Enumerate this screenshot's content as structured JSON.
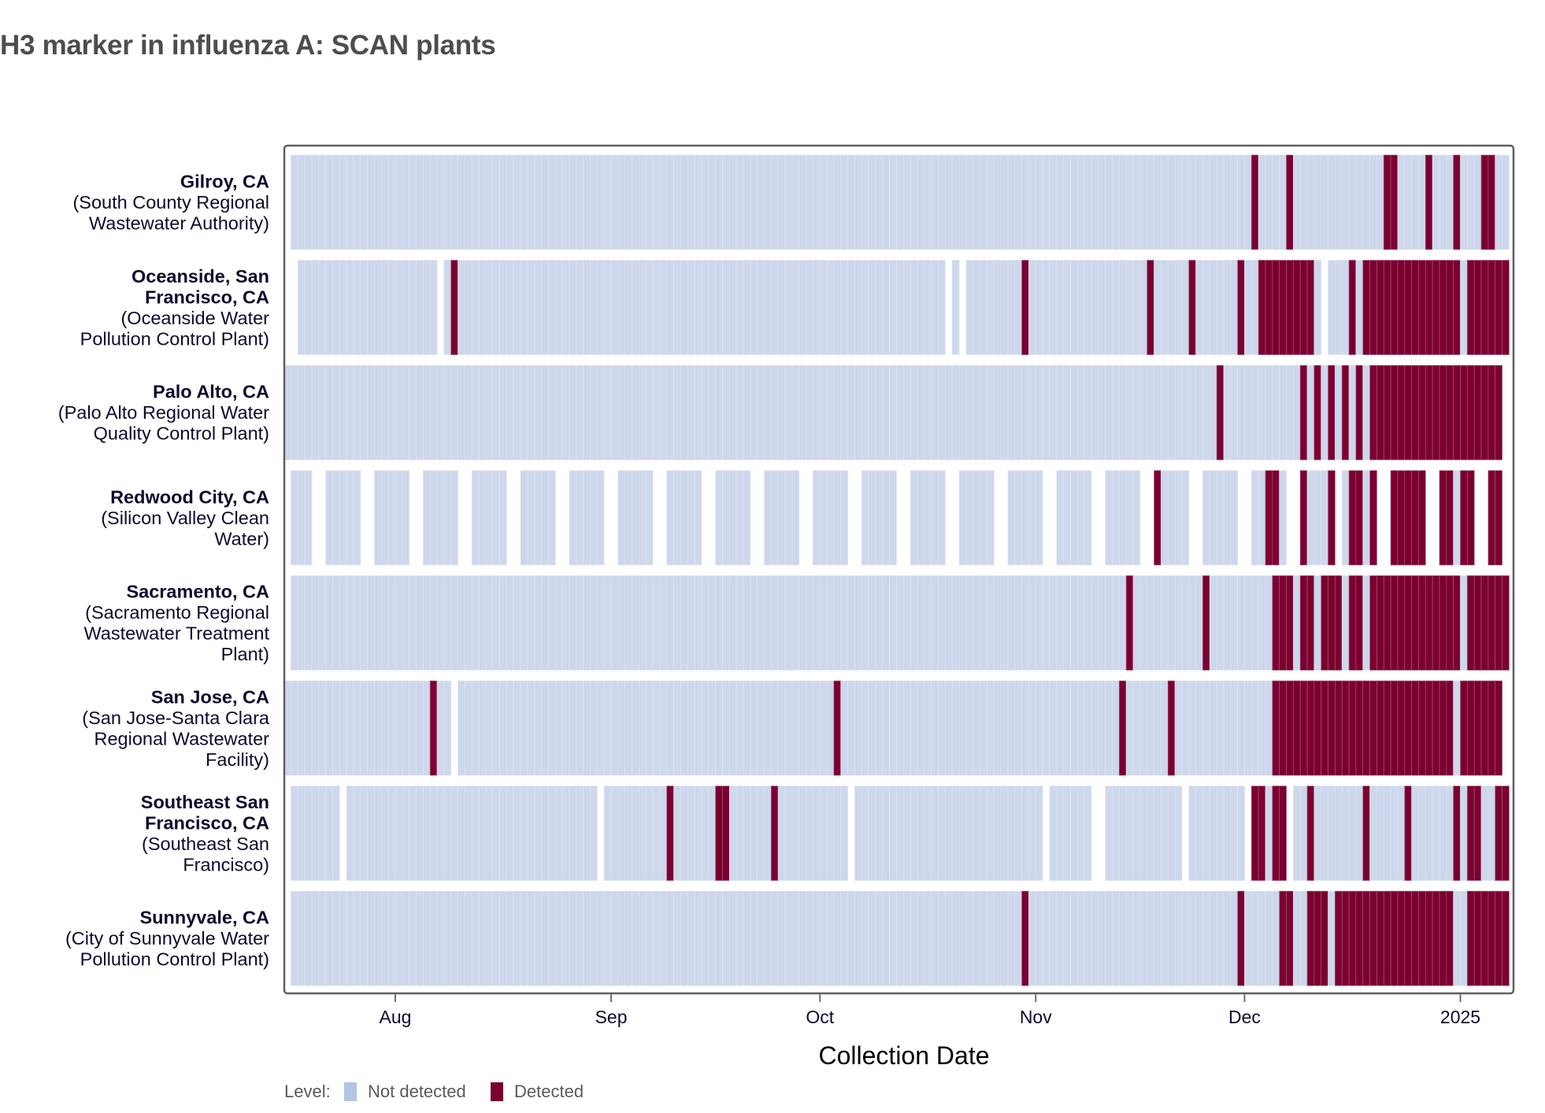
{
  "chart_data": {
    "type": "heatmap",
    "title": "H3 marker in influenza A: SCAN plants",
    "xlabel": "Collection Date",
    "ylabel": "",
    "x_range": [
      "2024-07-16",
      "2025-01-07"
    ],
    "x_ticks": [
      {
        "date": "2024-08-01",
        "label": "Aug"
      },
      {
        "date": "2024-09-01",
        "label": "Sep"
      },
      {
        "date": "2024-10-01",
        "label": "Oct"
      },
      {
        "date": "2024-11-01",
        "label": "Nov"
      },
      {
        "date": "2024-12-01",
        "label": "Dec"
      },
      {
        "date": "2025-01-01",
        "label": "2025"
      }
    ],
    "legend": {
      "title": "Level:",
      "position": "bottom-left",
      "entries": [
        {
          "label": "Not detected",
          "color": "#b4c4e4",
          "cell_color": "#ced7ec"
        },
        {
          "label": "Detected",
          "color": "#7b0030",
          "cell_color": "#7b0030"
        }
      ]
    },
    "series": [
      {
        "city": "Gilroy, CA",
        "plant": "(South County Regional Wastewater Authority)",
        "label_lines": [
          "Gilroy, CA",
          "(South County Regional",
          "Wastewater Authority)"
        ],
        "city_lines": 1,
        "sampled": [
          [
            "2024-07-17",
            "2025-01-07"
          ]
        ],
        "detected": [
          [
            "2024-12-02",
            "2024-12-02"
          ],
          [
            "2024-12-07",
            "2024-12-07"
          ],
          [
            "2024-12-21",
            "2024-12-22"
          ],
          [
            "2024-12-27",
            "2024-12-27"
          ],
          [
            "2024-12-31",
            "2024-12-31"
          ],
          [
            "2025-01-04",
            "2025-01-05"
          ]
        ]
      },
      {
        "city": "Oceanside, San Francisco, CA",
        "plant": "(Oceanside Water Pollution Control Plant)",
        "label_lines": [
          "Oceanside, San",
          "Francisco, CA",
          "(Oceanside Water",
          "Pollution Control Plant)"
        ],
        "city_lines": 2,
        "sampled": [
          [
            "2024-07-18",
            "2024-08-06"
          ],
          [
            "2024-08-08",
            "2024-10-18"
          ],
          [
            "2024-10-20",
            "2024-10-20"
          ],
          [
            "2024-10-22",
            "2024-12-11"
          ],
          [
            "2024-12-13",
            "2025-01-07"
          ]
        ],
        "detected": [
          [
            "2024-08-09",
            "2024-08-09"
          ],
          [
            "2024-10-30",
            "2024-10-30"
          ],
          [
            "2024-11-17",
            "2024-11-17"
          ],
          [
            "2024-11-23",
            "2024-11-23"
          ],
          [
            "2024-11-30",
            "2024-11-30"
          ],
          [
            "2024-12-03",
            "2024-12-10"
          ],
          [
            "2024-12-16",
            "2024-12-16"
          ],
          [
            "2024-12-18",
            "2024-12-31"
          ],
          [
            "2025-01-02",
            "2025-01-07"
          ]
        ]
      },
      {
        "city": "Palo Alto, CA",
        "plant": "(Palo Alto Regional Water Quality Control Plant)",
        "label_lines": [
          "Palo Alto, CA",
          "(Palo Alto Regional Water",
          "Quality Control Plant)"
        ],
        "city_lines": 1,
        "sampled": [
          [
            "2024-07-16",
            "2025-01-06"
          ]
        ],
        "detected": [
          [
            "2024-11-27",
            "2024-11-27"
          ],
          [
            "2024-12-09",
            "2024-12-09"
          ],
          [
            "2024-12-11",
            "2024-12-11"
          ],
          [
            "2024-12-13",
            "2024-12-13"
          ],
          [
            "2024-12-15",
            "2024-12-15"
          ],
          [
            "2024-12-17",
            "2024-12-17"
          ],
          [
            "2024-12-19",
            "2025-01-06"
          ]
        ]
      },
      {
        "city": "Redwood City, CA",
        "plant": "(Silicon Valley Clean Water)",
        "label_lines": [
          "Redwood City, CA",
          "(Silicon Valley Clean",
          "Water)"
        ],
        "city_lines": 1,
        "sampled": [
          [
            "2024-07-17",
            "2024-07-19"
          ],
          [
            "2024-07-22",
            "2024-07-26"
          ],
          [
            "2024-07-29",
            "2024-08-02"
          ],
          [
            "2024-08-05",
            "2024-08-09"
          ],
          [
            "2024-08-12",
            "2024-08-16"
          ],
          [
            "2024-08-19",
            "2024-08-23"
          ],
          [
            "2024-08-26",
            "2024-08-30"
          ],
          [
            "2024-09-02",
            "2024-09-06"
          ],
          [
            "2024-09-09",
            "2024-09-13"
          ],
          [
            "2024-09-16",
            "2024-09-20"
          ],
          [
            "2024-09-23",
            "2024-09-27"
          ],
          [
            "2024-09-30",
            "2024-10-04"
          ],
          [
            "2024-10-07",
            "2024-10-11"
          ],
          [
            "2024-10-14",
            "2024-10-18"
          ],
          [
            "2024-10-21",
            "2024-10-25"
          ],
          [
            "2024-10-28",
            "2024-11-01"
          ],
          [
            "2024-11-04",
            "2024-11-08"
          ],
          [
            "2024-11-11",
            "2024-11-15"
          ],
          [
            "2024-11-18",
            "2024-11-22"
          ],
          [
            "2024-11-25",
            "2024-11-29"
          ],
          [
            "2024-12-02",
            "2024-12-06"
          ],
          [
            "2024-12-09",
            "2024-12-13"
          ],
          [
            "2024-12-15",
            "2024-12-19"
          ],
          [
            "2024-12-22",
            "2024-12-26"
          ],
          [
            "2024-12-29",
            "2025-01-02"
          ],
          [
            "2025-01-05",
            "2025-01-06"
          ]
        ],
        "detected": [
          [
            "2024-11-18",
            "2024-11-18"
          ],
          [
            "2024-12-04",
            "2024-12-05"
          ],
          [
            "2024-12-09",
            "2024-12-09"
          ],
          [
            "2024-12-13",
            "2024-12-13"
          ],
          [
            "2024-12-16",
            "2024-12-17"
          ],
          [
            "2024-12-19",
            "2024-12-19"
          ],
          [
            "2024-12-22",
            "2024-12-26"
          ],
          [
            "2024-12-29",
            "2024-12-30"
          ],
          [
            "2025-01-01",
            "2025-01-02"
          ],
          [
            "2025-01-05",
            "2025-01-06"
          ]
        ]
      },
      {
        "city": "Sacramento, CA",
        "plant": "(Sacramento Regional Wastewater Treatment Plant)",
        "label_lines": [
          "Sacramento, CA",
          "(Sacramento Regional",
          "Wastewater Treatment",
          "Plant)"
        ],
        "city_lines": 1,
        "sampled": [
          [
            "2024-07-17",
            "2025-01-07"
          ]
        ],
        "detected": [
          [
            "2024-11-14",
            "2024-11-14"
          ],
          [
            "2024-11-25",
            "2024-11-25"
          ],
          [
            "2024-12-05",
            "2024-12-07"
          ],
          [
            "2024-12-09",
            "2024-12-10"
          ],
          [
            "2024-12-12",
            "2024-12-14"
          ],
          [
            "2024-12-16",
            "2024-12-17"
          ],
          [
            "2024-12-19",
            "2024-12-31"
          ],
          [
            "2025-01-02",
            "2025-01-07"
          ]
        ]
      },
      {
        "city": "San Jose, CA",
        "plant": "(San Jose-Santa Clara Regional Wastewater Facility)",
        "label_lines": [
          "San Jose, CA",
          "(San Jose-Santa Clara",
          "Regional Wastewater",
          "Facility)"
        ],
        "city_lines": 1,
        "sampled": [
          [
            "2024-07-16",
            "2024-08-08"
          ],
          [
            "2024-08-10",
            "2025-01-06"
          ]
        ],
        "detected": [
          [
            "2024-08-06",
            "2024-08-06"
          ],
          [
            "2024-10-03",
            "2024-10-03"
          ],
          [
            "2024-11-13",
            "2024-11-13"
          ],
          [
            "2024-11-20",
            "2024-11-20"
          ],
          [
            "2024-12-05",
            "2024-12-30"
          ],
          [
            "2025-01-01",
            "2025-01-06"
          ]
        ]
      },
      {
        "city": "Southeast San Francisco, CA",
        "plant": "(Southeast San Francisco)",
        "label_lines": [
          "Southeast San",
          "Francisco, CA",
          "(Southeast San",
          "Francisco)"
        ],
        "city_lines": 2,
        "sampled": [
          [
            "2024-07-17",
            "2024-07-23"
          ],
          [
            "2024-07-25",
            "2024-08-29"
          ],
          [
            "2024-08-31",
            "2024-10-04"
          ],
          [
            "2024-10-06",
            "2024-11-01"
          ],
          [
            "2024-11-03",
            "2024-11-08"
          ],
          [
            "2024-11-11",
            "2024-11-21"
          ],
          [
            "2024-11-23",
            "2024-11-30"
          ],
          [
            "2024-12-02",
            "2024-12-06"
          ],
          [
            "2024-12-08",
            "2025-01-07"
          ]
        ],
        "detected": [
          [
            "2024-09-09",
            "2024-09-09"
          ],
          [
            "2024-09-16",
            "2024-09-17"
          ],
          [
            "2024-09-24",
            "2024-09-24"
          ],
          [
            "2024-12-02",
            "2024-12-03"
          ],
          [
            "2024-12-05",
            "2024-12-06"
          ],
          [
            "2024-12-10",
            "2024-12-10"
          ],
          [
            "2024-12-18",
            "2024-12-18"
          ],
          [
            "2024-12-24",
            "2024-12-24"
          ],
          [
            "2024-12-31",
            "2024-12-31"
          ],
          [
            "2025-01-02",
            "2025-01-03"
          ],
          [
            "2025-01-06",
            "2025-01-07"
          ]
        ]
      },
      {
        "city": "Sunnyvale, CA",
        "plant": "(City of Sunnyvale Water Pollution Control Plant)",
        "label_lines": [
          "Sunnyvale, CA",
          "(City of Sunnyvale Water",
          "Pollution Control Plant)"
        ],
        "city_lines": 1,
        "sampled": [
          [
            "2024-07-17",
            "2025-01-07"
          ]
        ],
        "detected": [
          [
            "2024-10-30",
            "2024-10-30"
          ],
          [
            "2024-11-30",
            "2024-11-30"
          ],
          [
            "2024-12-06",
            "2024-12-07"
          ],
          [
            "2024-12-10",
            "2024-12-12"
          ],
          [
            "2024-12-14",
            "2024-12-30"
          ],
          [
            "2025-01-02",
            "2025-01-07"
          ]
        ]
      }
    ]
  }
}
